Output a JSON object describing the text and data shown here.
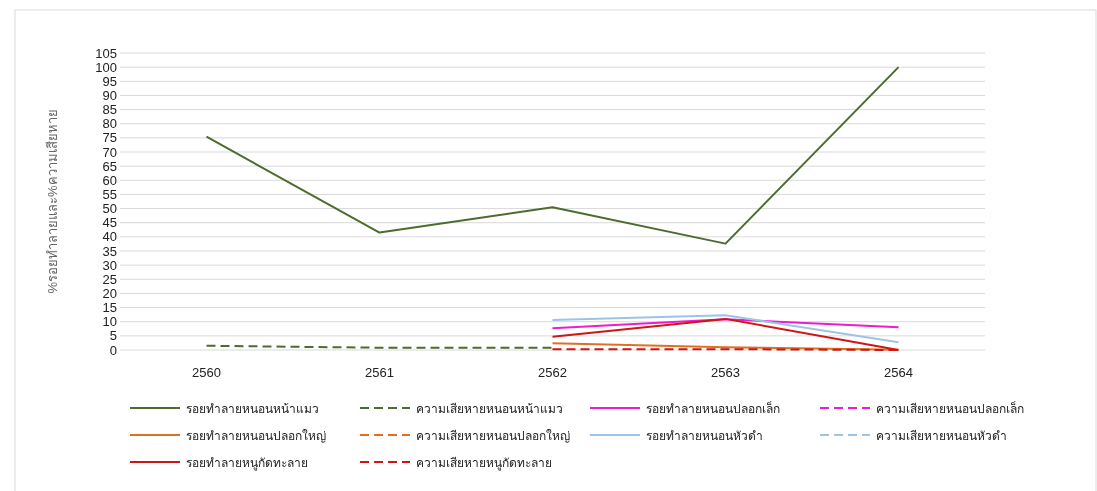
{
  "chart_data": {
    "type": "line",
    "ylabel": "%รอยทำลายและ%ความเสียหาย",
    "categories": [
      "2560",
      "2561",
      "2562",
      "2563",
      "2564"
    ],
    "ylim": [
      0,
      105
    ],
    "yticks": [
      0,
      5,
      10,
      15,
      20,
      25,
      30,
      35,
      40,
      45,
      50,
      55,
      60,
      65,
      70,
      75,
      80,
      85,
      90,
      95,
      100,
      105
    ],
    "grid": "y",
    "legend": "bottom",
    "series": [
      {
        "name": "รอยทำลายหนอนหน้าแมว",
        "color": "#4e6b2f",
        "line_style": "solid",
        "values": [
          75.4,
          41.5,
          50.5,
          37.6,
          100
        ]
      },
      {
        "name": "ความเสียหายหนอนหน้าแมว",
        "color": "#4e6b2f",
        "line_style": "dashed",
        "values": [
          1.5,
          0.8,
          0.8,
          null,
          null
        ]
      },
      {
        "name": "รอยทำลายหนอนปลอกเล็ก",
        "color": "#ee1bd2",
        "line_style": "solid",
        "values": [
          null,
          null,
          7.7,
          10.9,
          8
        ]
      },
      {
        "name": "ความเสียหายหนอนปลอกเล็ก",
        "color": "#ee1bd2",
        "line_style": "dashed",
        "values": [
          null,
          null,
          null,
          null,
          null
        ]
      },
      {
        "name": "รอยทำลายหนอนปลอกใหญ่",
        "color": "#e0701f",
        "line_style": "solid",
        "values": [
          null,
          null,
          2.4,
          1,
          0.1
        ]
      },
      {
        "name": "ความเสียหายหนอนปลอกใหญ่",
        "color": "#e0701f",
        "line_style": "dashed",
        "values": [
          null,
          null,
          null,
          null,
          null
        ]
      },
      {
        "name": "รอยทำลายหนอนหัวดำ",
        "color": "#9dc3e6",
        "line_style": "solid",
        "values": [
          null,
          null,
          10.6,
          12.3,
          2.7
        ]
      },
      {
        "name": "ความเสียหายหนอนหัวดำ",
        "color": "#9dc3e6",
        "line_style": "dashed",
        "values": [
          null,
          null,
          null,
          null,
          null
        ]
      },
      {
        "name": "รอยทำลายหนูกัดทะลาย",
        "color": "#d01515",
        "line_style": "solid",
        "values": [
          null,
          null,
          4.7,
          11,
          0
        ]
      },
      {
        "name": "ความเสียหายหนูกัดทะลาย",
        "color": "#d01515",
        "line_style": "dashed",
        "values": [
          null,
          null,
          0.3,
          0.3,
          0
        ]
      }
    ]
  }
}
